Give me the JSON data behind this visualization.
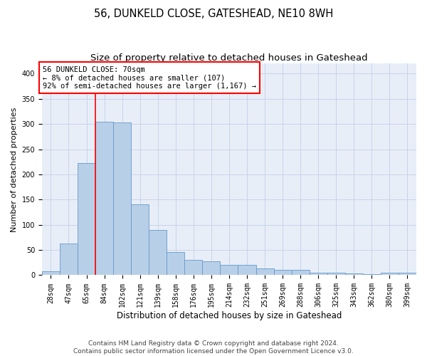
{
  "title": "56, DUNKELD CLOSE, GATESHEAD, NE10 8WH",
  "subtitle": "Size of property relative to detached houses in Gateshead",
  "xlabel": "Distribution of detached houses by size in Gateshead",
  "ylabel": "Number of detached properties",
  "bin_labels": [
    "28sqm",
    "47sqm",
    "65sqm",
    "84sqm",
    "102sqm",
    "121sqm",
    "139sqm",
    "158sqm",
    "176sqm",
    "195sqm",
    "214sqm",
    "232sqm",
    "251sqm",
    "269sqm",
    "288sqm",
    "306sqm",
    "325sqm",
    "343sqm",
    "362sqm",
    "380sqm",
    "399sqm"
  ],
  "bar_values": [
    8,
    63,
    222,
    305,
    303,
    140,
    90,
    46,
    30,
    27,
    20,
    20,
    14,
    11,
    10,
    5,
    5,
    3,
    2,
    5,
    5
  ],
  "bar_color": "#b8cfe8",
  "bar_edge_color": "#6699cc",
  "grid_color": "#c8d4e8",
  "background_color": "#e8eef8",
  "vline_x_index": 2,
  "annotation_text": "56 DUNKELD CLOSE: 70sqm\n← 8% of detached houses are smaller (107)\n92% of semi-detached houses are larger (1,167) →",
  "annotation_box_color": "white",
  "annotation_box_edge_color": "red",
  "footer_text": "Contains HM Land Registry data © Crown copyright and database right 2024.\nContains public sector information licensed under the Open Government Licence v3.0.",
  "ylim": [
    0,
    420
  ],
  "yticks": [
    0,
    50,
    100,
    150,
    200,
    250,
    300,
    350,
    400
  ],
  "title_fontsize": 10.5,
  "subtitle_fontsize": 9.5,
  "xlabel_fontsize": 8.5,
  "ylabel_fontsize": 8,
  "tick_fontsize": 7,
  "annotation_fontsize": 7.5,
  "footer_fontsize": 6.5
}
